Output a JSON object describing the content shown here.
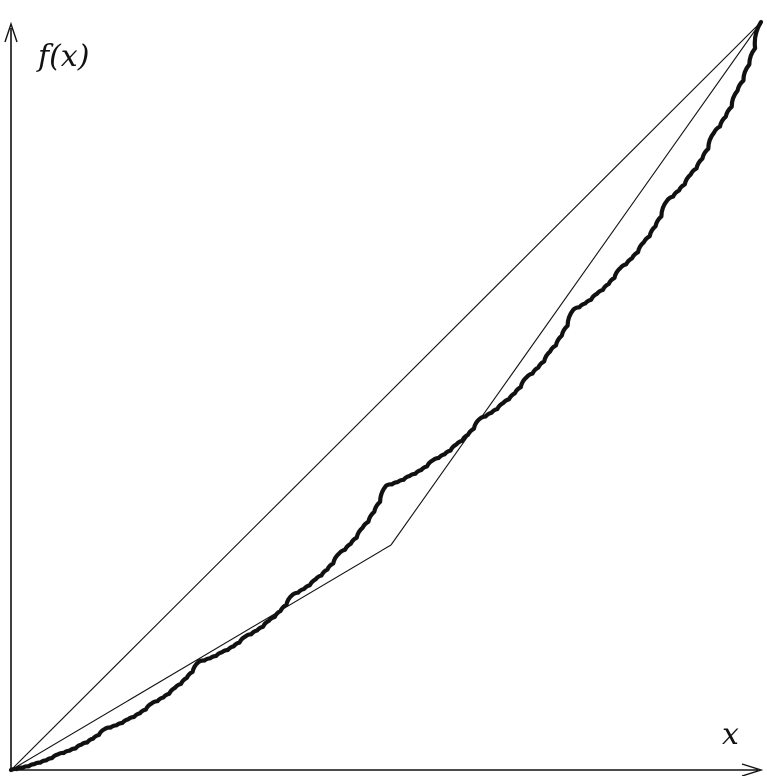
{
  "labels": {
    "y_axis": "f(x)",
    "x_axis": "x"
  },
  "colors": {
    "ink": "#111111",
    "background": "#ffffff"
  },
  "curve": {
    "description_type": "self-similar convex curve",
    "recursion_depth": 7,
    "midpoint_fraction": 0.38
  }
}
